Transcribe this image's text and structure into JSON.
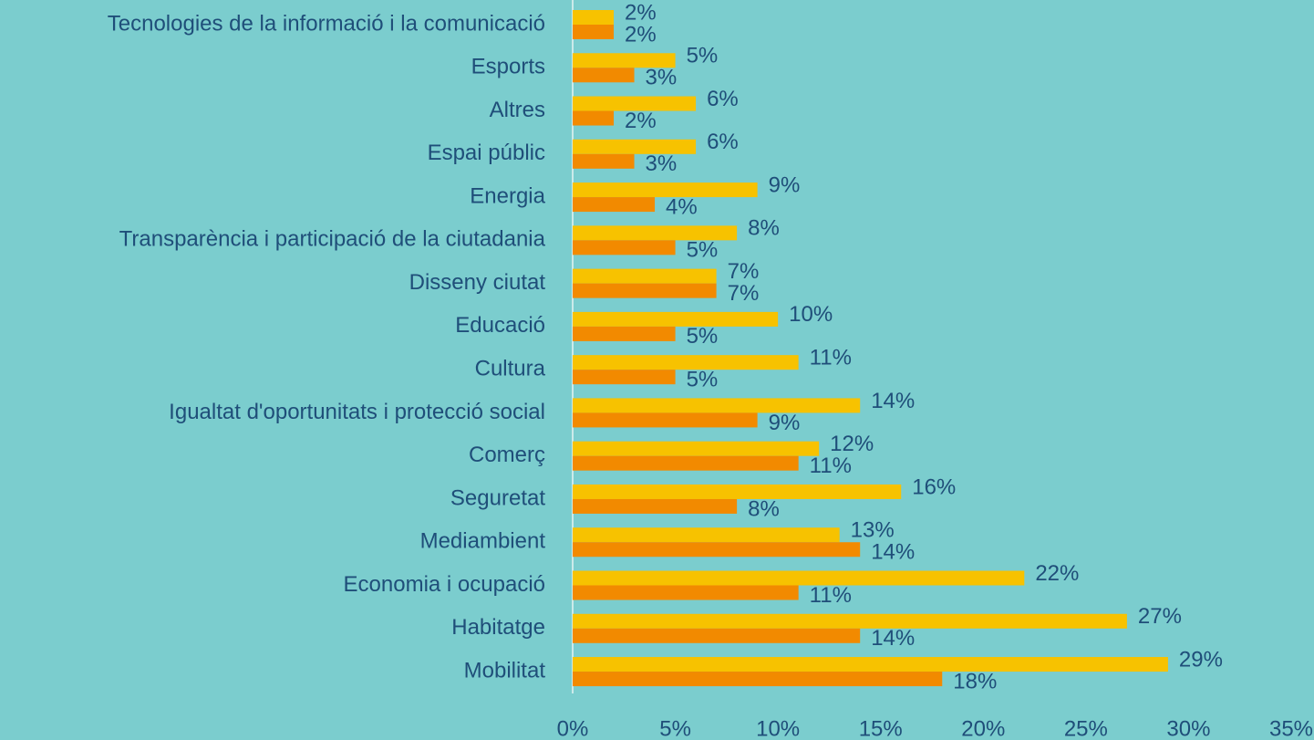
{
  "chart_data": {
    "type": "hbar",
    "categories": [
      "Tecnologies de la informació i la comunicació",
      "Esports",
      "Altres",
      "Espai públic",
      "Energia",
      "Transparència i participació de la ciutadania",
      "Disseny ciutat",
      "Educació",
      "Cultura",
      "Igualtat d'oportunitats i protecció social",
      "Comerç",
      "Seguretat",
      "Mediambient",
      "Economia i ocupació",
      "Habitatge",
      "Mobilitat"
    ],
    "series": [
      {
        "color": "#f7c200",
        "values": [
          2,
          5,
          6,
          6,
          9,
          8,
          7,
          10,
          11,
          14,
          12,
          16,
          13,
          22,
          27,
          29
        ],
        "value_labels": [
          "2%",
          "5%",
          "6%",
          "6%",
          "9%",
          "8%",
          "7%",
          "10%",
          "11%",
          "14%",
          "12%",
          "16%",
          "13%",
          "22%",
          "27%",
          "29%"
        ]
      },
      {
        "color": "#f28a00",
        "values": [
          2,
          3,
          2,
          3,
          4,
          5,
          7,
          5,
          5,
          9,
          11,
          8,
          14,
          11,
          14,
          18
        ],
        "value_labels": [
          "2%",
          "3%",
          "2%",
          "3%",
          "4%",
          "5%",
          "7%",
          "5%",
          "5%",
          "9%",
          "11%",
          "8%",
          "14%",
          "11%",
          "14%",
          "18%"
        ]
      }
    ],
    "xlim": [
      0,
      35
    ],
    "xticks": [
      {
        "value": 0,
        "label": "0%"
      },
      {
        "value": 5,
        "label": "5%"
      },
      {
        "value": 10,
        "label": "10%"
      },
      {
        "value": 15,
        "label": "15%"
      },
      {
        "value": 20,
        "label": "20%"
      },
      {
        "value": 25,
        "label": "25%"
      },
      {
        "value": 30,
        "label": "30%"
      },
      {
        "value": 35,
        "label": "35%"
      }
    ]
  }
}
